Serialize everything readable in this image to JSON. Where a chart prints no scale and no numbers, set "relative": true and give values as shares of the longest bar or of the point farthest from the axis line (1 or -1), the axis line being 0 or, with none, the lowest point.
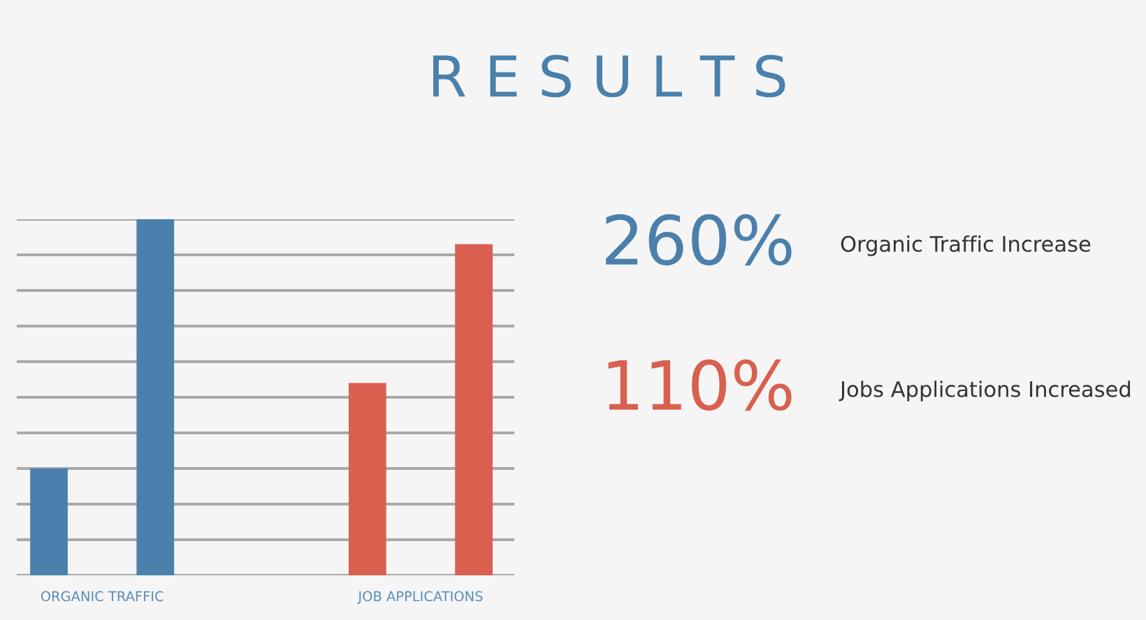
{
  "chart_data": {
    "type": "bar",
    "title": "R E S U L T S",
    "relative": true,
    "grid": true,
    "categories": [
      "ORGANIC TRAFFIC",
      "JOB APPLICATIONS"
    ],
    "series": [
      {
        "colors": [
          "#4a80ab",
          "#d9604f"
        ],
        "values": [
          0.3,
          0.54
        ]
      },
      {
        "colors": [
          "#4a80ab",
          "#d9604f"
        ],
        "values": [
          1,
          0.93
        ]
      }
    ],
    "annotations": [
      "260%",
      "Organic Traffic Increase",
      "110%",
      "Jobs Applications Increased"
    ]
  }
}
